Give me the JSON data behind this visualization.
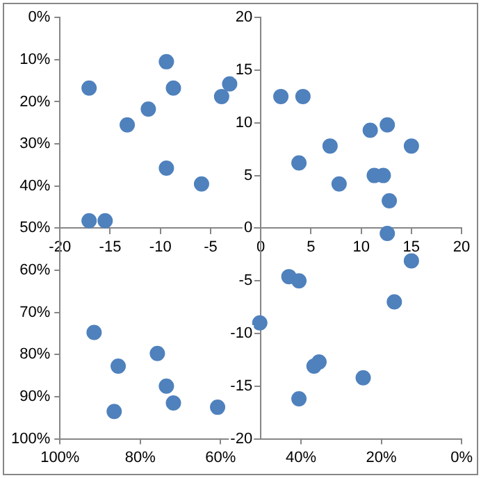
{
  "chart_data": {
    "type": "scatter",
    "marker": "circle",
    "grid": false,
    "legend": false,
    "series": [
      {
        "color": "#4f81bd",
        "x": [
          -17.1,
          -15.5,
          -17.1,
          -9.4,
          -8.7,
          -11.2,
          -13.3,
          -9.4,
          -5.9,
          -3.9,
          -3.1,
          2.0,
          4.2,
          3.8,
          6.9,
          7.8,
          10.9,
          12.6,
          15.0,
          11.3,
          12.2,
          12.8,
          12.6,
          15.0,
          2.8,
          3.8,
          13.3,
          -0.1,
          5.8,
          5.3,
          10.2,
          3.8,
          -16.6,
          -10.3,
          -14.2,
          -9.4,
          -8.7,
          -4.3,
          -14.6
        ],
        "values": [
          13.3,
          0.7,
          0.7,
          15.8,
          13.3,
          11.3,
          9.8,
          5.7,
          4.2,
          12.5,
          13.7,
          12.5,
          12.5,
          6.2,
          7.8,
          4.2,
          9.3,
          9.8,
          7.8,
          5.0,
          5.0,
          2.6,
          -0.5,
          -3.1,
          -4.6,
          -5.0,
          -7.0,
          -9.0,
          -12.7,
          -13.1,
          -14.2,
          -16.2,
          -9.9,
          -11.9,
          -13.1,
          -15.0,
          -16.6,
          -17.0,
          -17.4
        ]
      }
    ],
    "xlim": [
      -20,
      20
    ],
    "xticks": [
      -20,
      -15,
      -10,
      -5,
      0,
      5,
      10,
      15,
      20
    ],
    "ylim": [
      -20,
      20
    ],
    "yticks": [
      -20,
      -15,
      -10,
      -5,
      0,
      5,
      10,
      15,
      20
    ],
    "y2lim": [
      100,
      0
    ],
    "y2ticks": [
      {
        "value": 0,
        "label": "0%"
      },
      {
        "value": 10,
        "label": "10%"
      },
      {
        "value": 20,
        "label": "20%"
      },
      {
        "value": 30,
        "label": "30%"
      },
      {
        "value": 40,
        "label": "40%"
      },
      {
        "value": 50,
        "label": "50%"
      },
      {
        "value": 60,
        "label": "60%"
      },
      {
        "value": 70,
        "label": "70%"
      },
      {
        "value": 80,
        "label": "80%"
      },
      {
        "value": 90,
        "label": "90%"
      },
      {
        "value": 100,
        "label": "100%"
      }
    ],
    "x2lim": [
      100,
      0
    ],
    "x2ticks": [
      {
        "value": 100,
        "label": "100%"
      },
      {
        "value": 80,
        "label": "80%"
      },
      {
        "value": 60,
        "label": "60%"
      },
      {
        "value": 40,
        "label": "40%"
      },
      {
        "value": 20,
        "label": "20%"
      },
      {
        "value": 0,
        "label": "0%"
      }
    ]
  }
}
